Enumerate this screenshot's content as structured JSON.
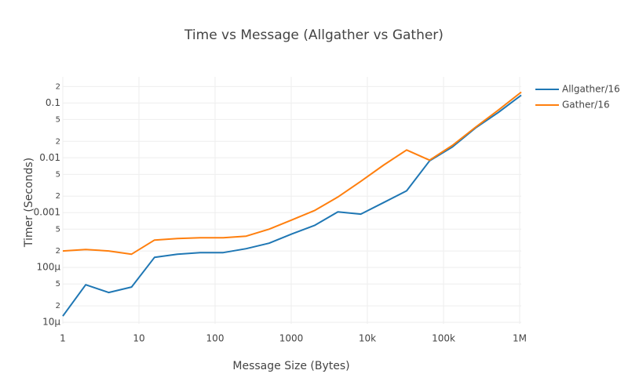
{
  "chart_data": {
    "type": "line",
    "title": "Time vs Message (Allgather vs Gather)",
    "x_label": "Message Size (Bytes)",
    "y_label": "Timer (Seconds)",
    "x": [
      1,
      2,
      4,
      8,
      16,
      32,
      64,
      128,
      256,
      512,
      1024,
      2048,
      4096,
      8192,
      16384,
      32768,
      65536,
      131072,
      262144,
      524288,
      1048576
    ],
    "series": [
      {
        "name": "Allgather/16",
        "color": "#1f77b4",
        "values": [
          1.3e-05,
          4.85e-05,
          3.5e-05,
          4.4e-05,
          0.000153,
          0.000175,
          0.000187,
          0.000187,
          0.00022,
          0.000277,
          0.00041,
          0.00059,
          0.00103,
          0.00094,
          0.00153,
          0.0025,
          0.0088,
          0.0158,
          0.0349,
          0.0674,
          0.139
        ]
      },
      {
        "name": "Gather/16",
        "color": "#ff7f0e",
        "values": [
          0.0002,
          0.000213,
          0.0002,
          0.000175,
          0.000316,
          0.000338,
          0.000349,
          0.000349,
          0.000373,
          0.0005,
          0.00074,
          0.0011,
          0.00193,
          0.00373,
          0.0074,
          0.0139,
          0.00906,
          0.0169,
          0.036,
          0.0744,
          0.158
        ]
      }
    ],
    "xlog": true,
    "ylog": true,
    "grid": true,
    "legend": "right",
    "xlim": [
      1,
      1048576
    ],
    "xticks": [
      1,
      10,
      100,
      1000,
      {
        "value": 10000,
        "label": "10k"
      },
      {
        "value": 100000,
        "label": "100k"
      },
      {
        "value": 1000000,
        "label": "1M"
      }
    ],
    "ylim": [
      9.4e-06,
      0.3
    ],
    "yticks": [
      {
        "value": 1e-05,
        "label": "10μ"
      },
      {
        "value": 2e-05,
        "label": "2"
      },
      {
        "value": 5e-05,
        "label": "5"
      },
      {
        "value": 0.0001,
        "label": "100μ"
      },
      {
        "value": 0.0002,
        "label": "2"
      },
      {
        "value": 0.0005,
        "label": "5"
      },
      0.001,
      {
        "value": 0.002,
        "label": "2"
      },
      {
        "value": 0.005,
        "label": "5"
      },
      0.01,
      {
        "value": 0.02,
        "label": "2"
      },
      {
        "value": 0.05,
        "label": "5"
      },
      0.1,
      {
        "value": 0.2,
        "label": "2"
      }
    ]
  }
}
